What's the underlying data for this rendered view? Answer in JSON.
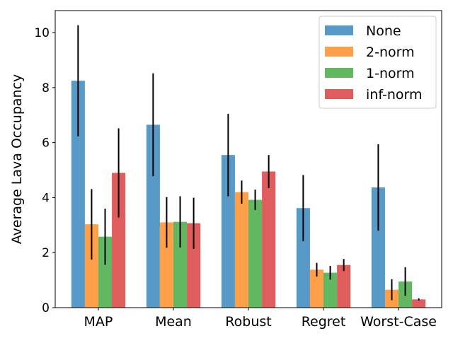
{
  "chart_data": {
    "type": "bar",
    "categories": [
      "MAP",
      "Mean",
      "Robust",
      "Regret",
      "Worst-Case"
    ],
    "ylabel": "Average Lava Occupancy",
    "ylim": [
      0,
      10.8
    ],
    "yticks": [
      0,
      2,
      4,
      6,
      8,
      10
    ],
    "grid": false,
    "legend_position": "top-right",
    "series": [
      {
        "name": "None",
        "color": "#1f77b4",
        "values": [
          8.25,
          6.65,
          5.55,
          3.62,
          4.37
        ],
        "errors": [
          2.02,
          1.87,
          1.5,
          1.2,
          1.57
        ]
      },
      {
        "name": "2-norm",
        "color": "#ff7f0e",
        "values": [
          3.03,
          3.1,
          4.2,
          1.38,
          0.65
        ],
        "errors": [
          1.28,
          0.92,
          0.42,
          0.25,
          0.38
        ]
      },
      {
        "name": "1-norm",
        "color": "#2ca02c",
        "values": [
          2.58,
          3.12,
          3.92,
          1.27,
          0.95
        ],
        "errors": [
          1.02,
          0.93,
          0.37,
          0.25,
          0.52
        ]
      },
      {
        "name": "inf-norm",
        "color": "#d62728",
        "values": [
          4.9,
          3.07,
          4.95,
          1.55,
          0.3
        ],
        "errors": [
          1.62,
          0.93,
          0.6,
          0.22,
          0.04
        ]
      }
    ]
  }
}
